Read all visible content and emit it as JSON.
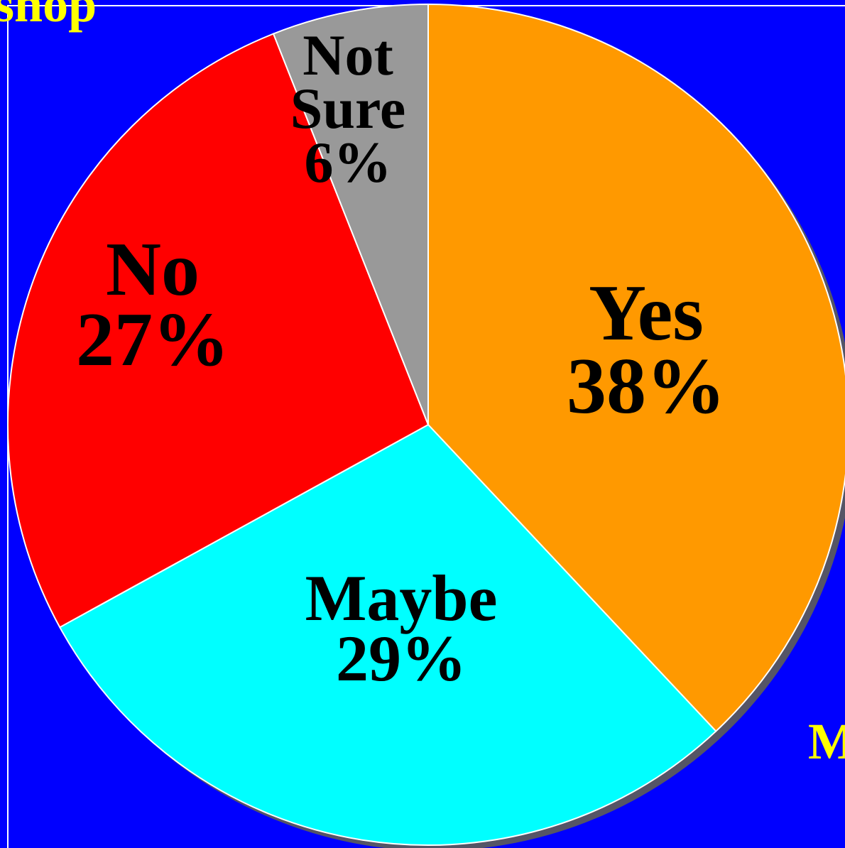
{
  "chart_data": {
    "type": "pie",
    "categories": [
      "Yes",
      "Maybe",
      "No",
      "Not Sure"
    ],
    "values": [
      38,
      29,
      27,
      6
    ],
    "value_labels": [
      "38%",
      "29%",
      "27%",
      "6%"
    ],
    "colors": [
      "#ff9900",
      "#00ffff",
      "#ff0000",
      "#999999"
    ],
    "annotations": [
      "shop",
      "M"
    ]
  }
}
